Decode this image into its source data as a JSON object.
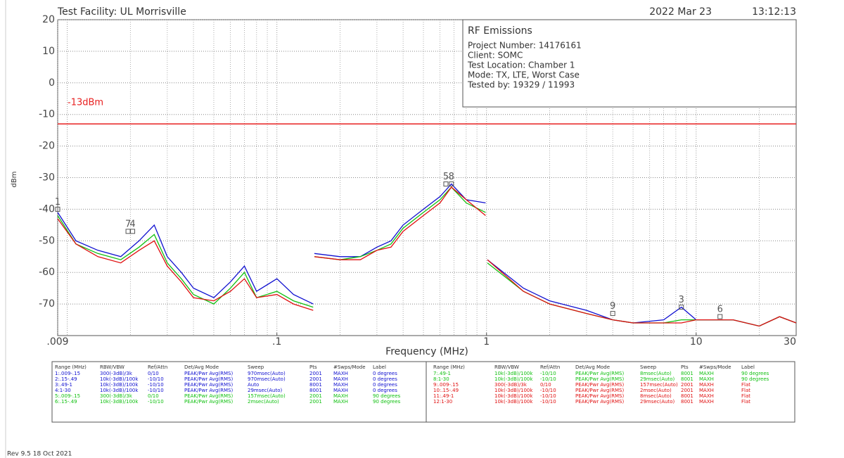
{
  "chart_data": {
    "type": "line",
    "title": "Test Facility:  UL Morrisville",
    "date": "2022 Mar 23",
    "time": "13:12:13",
    "xlabel": "Frequency (MHz)",
    "ylabel": "dBm",
    "xscale": "log",
    "grid": true,
    "xlim": [
      0.009,
      30
    ],
    "xticks": [
      {
        "value": 0.009,
        "label": ".009"
      },
      {
        "value": 0.1,
        "label": ".1"
      },
      1,
      10,
      30
    ],
    "ylim": [
      -80,
      20
    ],
    "yticks": [
      20,
      10,
      0,
      -10,
      -20,
      -30,
      -40,
      -50,
      -60,
      -70
    ],
    "limit": {
      "value": -13,
      "label": "-13dBm",
      "color": "#e82020"
    },
    "info": {
      "heading": "RF Emissions",
      "lines": [
        "Project Number: 14176161",
        "Client: SOMC",
        "Test Location: Chamber 1",
        "Mode: TX, LTE, Worst Case",
        "Tested by: 19329 / 11993"
      ]
    },
    "x": [
      0.009,
      0.011,
      0.014,
      0.018,
      0.022,
      0.026,
      0.03,
      0.035,
      0.04,
      0.05,
      0.06,
      0.07,
      0.08,
      0.1,
      0.12,
      0.149,
      0.15,
      0.151,
      0.2,
      0.25,
      0.3,
      0.35,
      0.4,
      0.5,
      0.6,
      0.68,
      0.8,
      0.99,
      1.0,
      1.01,
      1.5,
      2,
      3,
      4,
      5,
      7,
      8.5,
      10,
      15,
      20,
      25,
      30
    ],
    "series": [
      {
        "name": "0 degrees",
        "color": "#1010d0",
        "values": [
          -41,
          -50,
          -53,
          -55,
          -50,
          -45,
          -55,
          -60,
          -65,
          -68,
          -63,
          -58,
          -66,
          -62,
          -67,
          -70,
          null,
          -54,
          -55,
          -55,
          -52,
          -50,
          -45,
          -40,
          -36,
          -32,
          -37,
          -38,
          null,
          -56,
          -65,
          -69,
          -72,
          -75,
          -76,
          -75,
          -71,
          -75,
          -75,
          -77,
          -74,
          -76
        ]
      },
      {
        "name": "90 degrees",
        "color": "#10c010",
        "values": [
          -42,
          -51,
          -54,
          -56,
          -52,
          -48,
          -57,
          -62,
          -67,
          -70,
          -65,
          -60,
          -68,
          -66,
          -69,
          -71,
          null,
          -55,
          -56,
          -55,
          -53,
          -51,
          -46,
          -41,
          -37,
          -33,
          -38,
          -41,
          null,
          -57,
          -66,
          -70,
          -73,
          -75,
          -76,
          -76,
          -75,
          -75,
          -75,
          -77,
          -74,
          -76
        ]
      },
      {
        "name": "Flat",
        "color": "#e01010",
        "values": [
          -43,
          -51,
          -55,
          -57,
          -53,
          -50,
          -58,
          -63,
          -68,
          -69,
          -66,
          -62,
          -68,
          -67,
          -70,
          -72,
          null,
          -55,
          -56,
          -56,
          -53,
          -52,
          -47,
          -42,
          -38,
          -33,
          -37,
          -42,
          null,
          -56,
          -66,
          -70,
          -73,
          -75,
          -76,
          -76,
          -76,
          -75,
          -75,
          -77,
          -74,
          -76
        ]
      }
    ],
    "markers": [
      {
        "label": "1",
        "x": 0.009,
        "y": -40
      },
      {
        "label": "7",
        "x": 0.0195,
        "y": -47
      },
      {
        "label": "4",
        "x": 0.0205,
        "y": -47
      },
      {
        "label": "5",
        "x": 0.64,
        "y": -32
      },
      {
        "label": "8",
        "x": 0.68,
        "y": -32
      },
      {
        "label": "9",
        "x": 4,
        "y": -73
      },
      {
        "label": "3",
        "x": 8.5,
        "y": -71
      },
      {
        "label": "6",
        "x": 13,
        "y": -74
      }
    ]
  },
  "settings_table": {
    "columns": [
      "Range (MHz)",
      "RBW/VBW",
      "Ref/Attn",
      "Det/Avg Mode",
      "Sweep",
      "Pts",
      "#Swps/Mode",
      "Label"
    ],
    "left_rows": [
      {
        "color": "#1010d0",
        "cells": [
          "1:.009-.15",
          "300(-3dB)/3k",
          "0/10",
          "PEAK/Pwr Avg(RMS)",
          "970msec(Auto)",
          "2001",
          "MAXH",
          "0 degrees"
        ]
      },
      {
        "color": "#1010d0",
        "cells": [
          "2:.15-.49",
          "10k(-3dB)/100k",
          "-10/10",
          "PEAK/Pwr Avg(RMS)",
          "970msec(Auto)",
          "2001",
          "MAXH",
          "0 degrees"
        ]
      },
      {
        "color": "#1010d0",
        "cells": [
          "3:.49-1",
          "10k(-3dB)/100k",
          "-10/10",
          "PEAK/Pwr Avg(RMS)",
          "Auto",
          "8001",
          "MAXH",
          "0 degrees"
        ]
      },
      {
        "color": "#1010d0",
        "cells": [
          "4:1-30",
          "10k(-3dB)/100k",
          "-10/10",
          "PEAK/Pwr Avg(RMS)",
          "29msec(Auto)",
          "8001",
          "MAXH",
          "0 degrees"
        ]
      },
      {
        "color": "#10c010",
        "cells": [
          "5:.009-.15",
          "300(-3dB)/3k",
          "0/10",
          "PEAK/Pwr Avg(RMS)",
          "157msec(Auto)",
          "2001",
          "MAXH",
          "90 degrees"
        ]
      },
      {
        "color": "#10c010",
        "cells": [
          "6:.15-.49",
          "10k(-3dB)/100k",
          "-10/10",
          "PEAK/Pwr Avg(RMS)",
          "2msec(Auto)",
          "2001",
          "MAXH",
          "90 degrees"
        ]
      }
    ],
    "right_rows": [
      {
        "color": "#10c010",
        "cells": [
          "7:.49-1",
          "10k(-3dB)/100k",
          "-10/10",
          "PEAK/Pwr Avg(RMS)",
          "8msec(Auto)",
          "8001",
          "MAXH",
          "90 degrees"
        ]
      },
      {
        "color": "#10c010",
        "cells": [
          "8:1-30",
          "10k(-3dB)/100k",
          "-10/10",
          "PEAK/Pwr Avg(RMS)",
          "29msec(Auto)",
          "8001",
          "MAXH",
          "90 degrees"
        ]
      },
      {
        "color": "#e01010",
        "cells": [
          "9:.009-.15",
          "300(-3dB)/3k",
          "0/10",
          "PEAK/Pwr Avg(RMS)",
          "157msec(Auto)",
          "2001",
          "MAXH",
          "Flat"
        ]
      },
      {
        "color": "#e01010",
        "cells": [
          "10:.15-.49",
          "10k(-3dB)/100k",
          "-10/10",
          "PEAK/Pwr Avg(RMS)",
          "2msec(Auto)",
          "2001",
          "MAXH",
          "Flat"
        ]
      },
      {
        "color": "#e01010",
        "cells": [
          "11:.49-1",
          "10k(-3dB)/100k",
          "-10/10",
          "PEAK/Pwr Avg(RMS)",
          "8msec(Auto)",
          "8001",
          "MAXH",
          "Flat"
        ]
      },
      {
        "color": "#e01010",
        "cells": [
          "12:1-30",
          "10k(-3dB)/100k",
          "-10/10",
          "PEAK/Pwr Avg(RMS)",
          "29msec(Auto)",
          "8001",
          "MAXH",
          "Flat"
        ]
      }
    ]
  },
  "footer": "Rev 9.5 18 Oct 2021"
}
